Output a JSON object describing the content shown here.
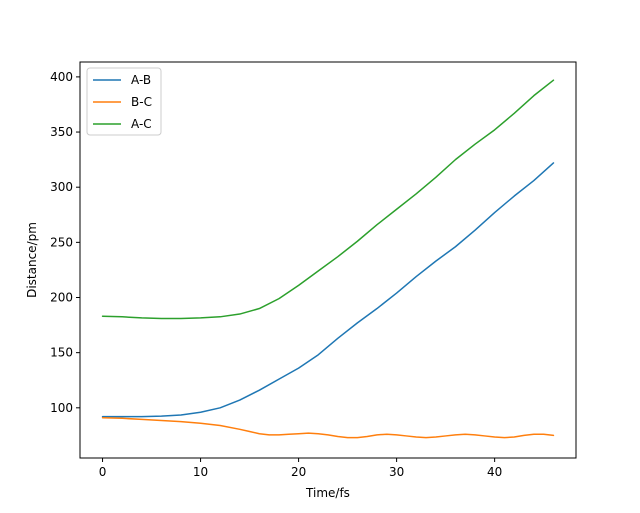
{
  "chart_data": {
    "type": "line",
    "title": "",
    "xlabel": "Time/fs",
    "ylabel": "Distance/pm",
    "xlim": [
      -2.3,
      48.3
    ],
    "ylim": [
      54.5,
      413.5
    ],
    "xticks": [
      0,
      10,
      20,
      30,
      40
    ],
    "yticks": [
      100,
      150,
      200,
      250,
      300,
      350,
      400
    ],
    "grid": false,
    "legend_position": "top-left",
    "series": [
      {
        "name": "A-B",
        "color": "#1f77b4",
        "x": [
          0,
          2,
          4,
          6,
          8,
          10,
          12,
          14,
          16,
          18,
          20,
          22,
          24,
          26,
          28,
          30,
          32,
          34,
          36,
          38,
          40,
          42,
          44,
          46
        ],
        "y": [
          92,
          92,
          92,
          92.5,
          93.5,
          96,
          100,
          107,
          116,
          126,
          136,
          148,
          163,
          177,
          190,
          204,
          219,
          233,
          246,
          261,
          277,
          292,
          306,
          322
        ]
      },
      {
        "name": "B-C",
        "color": "#ff7f0e",
        "x": [
          0,
          2,
          4,
          6,
          8,
          10,
          12,
          14,
          15,
          16,
          17,
          18,
          19,
          20,
          21,
          22,
          23,
          24,
          25,
          26,
          27,
          28,
          29,
          30,
          31,
          32,
          33,
          34,
          35,
          36,
          37,
          38,
          39,
          40,
          41,
          42,
          43,
          44,
          45,
          46
        ],
        "y": [
          91,
          90.5,
          89.5,
          88.5,
          87.5,
          86,
          84,
          80.5,
          78.5,
          76.5,
          75.5,
          75.5,
          76,
          76.5,
          77,
          76.5,
          75.5,
          74,
          73,
          73,
          74,
          75.5,
          76,
          75.5,
          74.5,
          73.5,
          73,
          73.5,
          74.5,
          75.5,
          76,
          75.5,
          74.5,
          73.5,
          73,
          73.5,
          75,
          76,
          76,
          75
        ]
      },
      {
        "name": "A-C",
        "color": "#2ca02c",
        "x": [
          0,
          2,
          4,
          6,
          8,
          10,
          12,
          14,
          16,
          18,
          20,
          22,
          24,
          26,
          28,
          30,
          32,
          34,
          36,
          38,
          40,
          42,
          44,
          46
        ],
        "y": [
          183,
          182.5,
          181.5,
          181,
          181,
          181.5,
          182.5,
          185,
          190,
          199,
          211,
          224,
          237,
          251,
          266,
          280,
          294,
          309,
          325,
          339,
          352,
          367,
          383,
          397
        ]
      }
    ]
  }
}
